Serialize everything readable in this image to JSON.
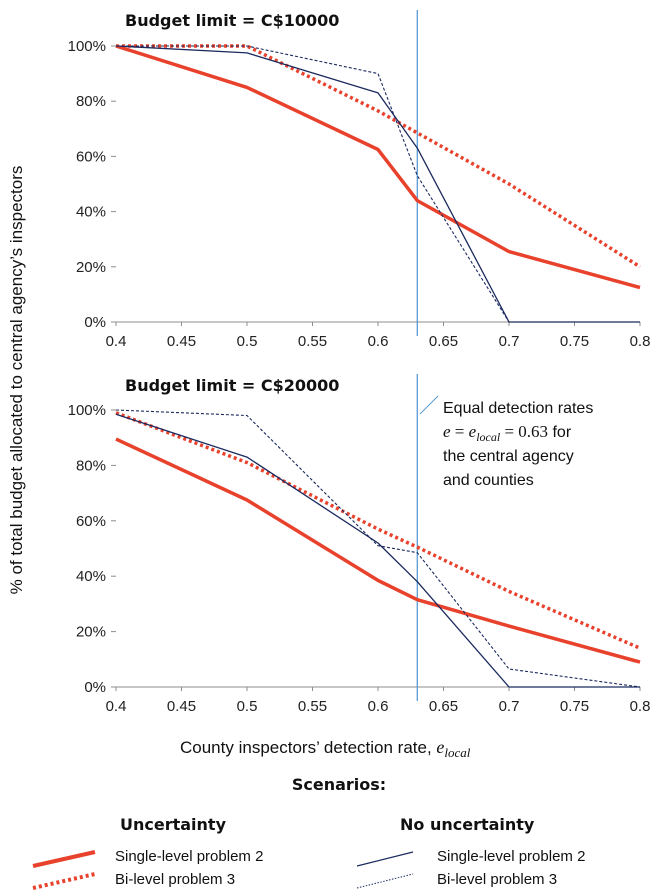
{
  "chart_data": [
    {
      "type": "line",
      "title": "Budget limit = C$10000",
      "x": [
        0.4,
        0.5,
        0.6,
        0.63,
        0.7,
        0.8
      ],
      "x_ticks": [
        "0.4",
        "0.45",
        "0.5",
        "0.55",
        "0.6",
        "0.65",
        "0.7",
        "0.75",
        "0.8"
      ],
      "y_ticks": [
        "0%",
        "20%",
        "40%",
        "60%",
        "80%",
        "100%"
      ],
      "xlim": [
        0.4,
        0.8
      ],
      "ylim": [
        0,
        100
      ],
      "reference_line_x": 0.63,
      "series": [
        {
          "name": "Single-level problem 2",
          "group": "Uncertainty",
          "color": "#e8412c",
          "style": "solid-thick",
          "values": [
            100,
            85,
            62.5,
            44,
            25.5,
            12.5
          ]
        },
        {
          "name": "Bi-level problem 3",
          "group": "Uncertainty",
          "color": "#e8412c",
          "style": "dotted-thick",
          "values": [
            100,
            100,
            76.5,
            68.5,
            50,
            20
          ]
        },
        {
          "name": "Single-level problem 2",
          "group": "No uncertainty",
          "color": "#1b2a5e",
          "style": "solid-thin",
          "values": [
            100,
            97.5,
            83,
            63,
            0,
            0
          ]
        },
        {
          "name": "Bi-level problem 3",
          "group": "No uncertainty",
          "color": "#1b2a5e",
          "style": "dashed-thin",
          "values": [
            100,
            100,
            90,
            53,
            0,
            0
          ]
        }
      ]
    },
    {
      "type": "line",
      "title": "Budget limit = C$20000",
      "x": [
        0.4,
        0.5,
        0.6,
        0.63,
        0.7,
        0.8
      ],
      "x_ticks": [
        "0.4",
        "0.45",
        "0.5",
        "0.55",
        "0.6",
        "0.65",
        "0.7",
        "0.75",
        "0.8"
      ],
      "y_ticks": [
        "0%",
        "20%",
        "40%",
        "60%",
        "80%",
        "100%"
      ],
      "xlim": [
        0.4,
        0.8
      ],
      "ylim": [
        0,
        100
      ],
      "reference_line_x": 0.63,
      "series": [
        {
          "name": "Single-level problem 2",
          "group": "Uncertainty",
          "color": "#e8412c",
          "style": "solid-thick",
          "values": [
            89.5,
            67.5,
            38.5,
            31.5,
            22,
            9
          ]
        },
        {
          "name": "Bi-level problem 3",
          "group": "Uncertainty",
          "color": "#e8412c",
          "style": "dotted-thick",
          "values": [
            99,
            81,
            57,
            50.5,
            34.5,
            14
          ]
        },
        {
          "name": "Single-level problem 2",
          "group": "No uncertainty",
          "color": "#1b2a5e",
          "style": "solid-thin",
          "values": [
            98.5,
            83,
            52,
            38,
            0,
            0
          ]
        },
        {
          "name": "Bi-level problem 3",
          "group": "No uncertainty",
          "color": "#1b2a5e",
          "style": "dashed-thin",
          "values": [
            100,
            98,
            51,
            48.5,
            6.5,
            0
          ]
        }
      ]
    }
  ],
  "axes": {
    "ylabel": "% of total budget allocated to central agency’s inspectors",
    "xlabel_text": "County inspectors’ detection rate, ",
    "xlabel_var": "e",
    "xlabel_sub": "local"
  },
  "annotation": {
    "line1": "Equal detection rates",
    "eq_e": "e",
    "eq_eq1": " = ",
    "eq_e2": "e",
    "eq_sub": "local",
    "eq_val": " = 0.63",
    "eq_tail": " for",
    "line3": "the central agency",
    "line4": "and counties"
  },
  "legend": {
    "title": "Scenarios:",
    "group_uncertainty": "Uncertainty",
    "group_no_uncertainty": "No uncertainty",
    "u_single": "Single-level problem 2",
    "u_bi": "Bi-level problem 3",
    "n_single": "Single-level problem 2",
    "n_bi": "Bi-level problem 3"
  },
  "colors": {
    "uncertainty": "#e8412c",
    "no_uncertainty": "#1b2a5e",
    "reference_line": "#5a9bd5",
    "axis": "#8c8c8c"
  }
}
